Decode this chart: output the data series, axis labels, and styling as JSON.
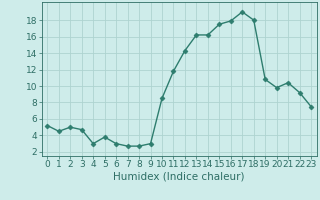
{
  "x": [
    0,
    1,
    2,
    3,
    4,
    5,
    6,
    7,
    8,
    9,
    10,
    11,
    12,
    13,
    14,
    15,
    16,
    17,
    18,
    19,
    20,
    21,
    22,
    23
  ],
  "y": [
    5.2,
    4.5,
    5.0,
    4.7,
    3.0,
    3.8,
    3.0,
    2.7,
    2.7,
    3.0,
    8.5,
    11.8,
    14.3,
    16.2,
    16.2,
    17.5,
    17.9,
    19.0,
    18.0,
    10.8,
    9.8,
    10.4,
    9.2,
    7.5
  ],
  "line_color": "#2e7d6e",
  "marker": "D",
  "marker_size": 2.5,
  "bg_color": "#ceecea",
  "grid_color": "#aed4d0",
  "xlabel": "Humidex (Indice chaleur)",
  "ylim": [
    1.5,
    20.2
  ],
  "xlim": [
    -0.5,
    23.5
  ],
  "yticks": [
    2,
    4,
    6,
    8,
    10,
    12,
    14,
    16,
    18
  ],
  "xticks": [
    0,
    1,
    2,
    3,
    4,
    5,
    6,
    7,
    8,
    9,
    10,
    11,
    12,
    13,
    14,
    15,
    16,
    17,
    18,
    19,
    20,
    21,
    22,
    23
  ],
  "xlabel_fontsize": 7.5,
  "tick_fontsize": 6.5,
  "line_width": 1.0,
  "axis_color": "#2e6e65"
}
